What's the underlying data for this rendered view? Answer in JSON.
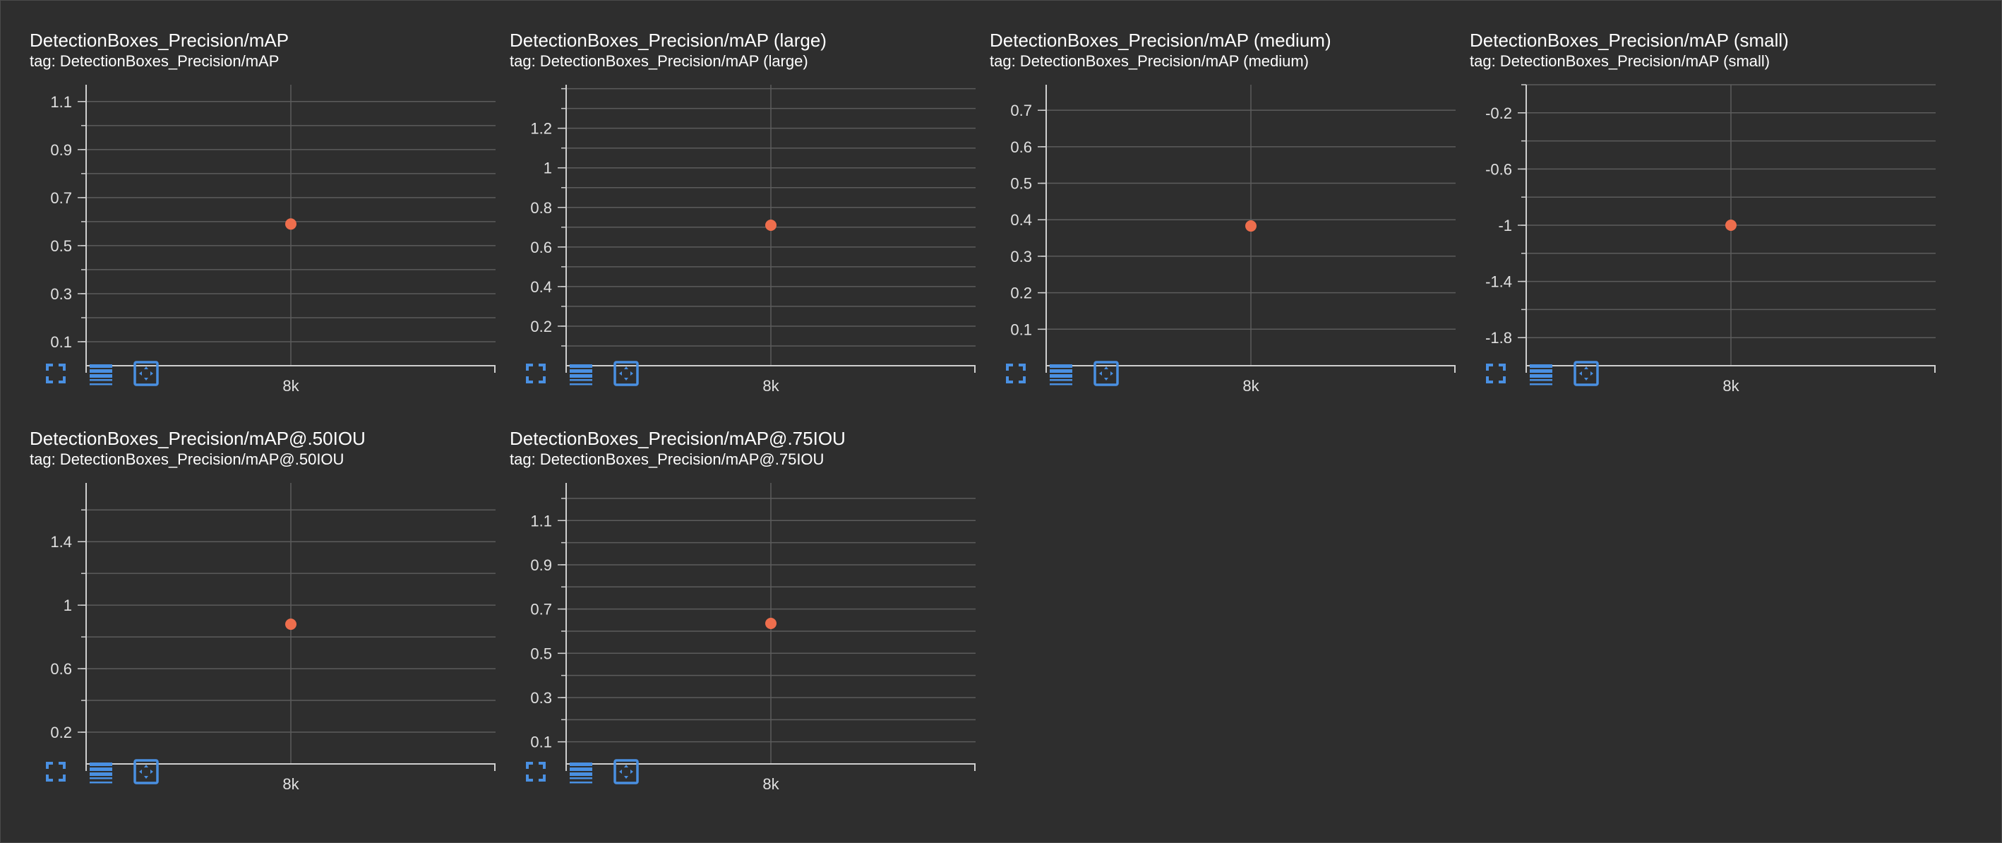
{
  "colors": {
    "background": "#2e2e2e",
    "grid": "#5c5c5c",
    "axis": "#cfcfcf",
    "point": "#ee6e4d",
    "icon": "#4a90e2",
    "text": "#ffffff"
  },
  "toolbar_icons": [
    "fullscreen-icon",
    "data-table-icon",
    "fit-domain-icon"
  ],
  "cards": [
    {
      "title": "DetectionBoxes_Precision/mAP",
      "tag": "tag: DetectionBoxes_Precision/mAP"
    },
    {
      "title": "DetectionBoxes_Precision/mAP (large)",
      "tag": "tag: DetectionBoxes_Precision/mAP (large)"
    },
    {
      "title": "DetectionBoxes_Precision/mAP (medium)",
      "tag": "tag: DetectionBoxes_Precision/mAP (medium)"
    },
    {
      "title": "DetectionBoxes_Precision/mAP (small)",
      "tag": "tag: DetectionBoxes_Precision/mAP (small)"
    },
    {
      "title": "DetectionBoxes_Precision/mAP@.50IOU",
      "tag": "tag: DetectionBoxes_Precision/mAP@.50IOU"
    },
    {
      "title": "DetectionBoxes_Precision/mAP@.75IOU",
      "tag": "tag: DetectionBoxes_Precision/mAP@.75IOU"
    }
  ],
  "chart_data": [
    {
      "type": "scatter",
      "title": "DetectionBoxes_Precision/mAP",
      "x_tick_labels": [
        "8k"
      ],
      "y_ticks": [
        0.1,
        0.3,
        0.5,
        0.7,
        0.9,
        1.1
      ],
      "y_tick_labels": [
        "0.1",
        "0.3",
        "0.5",
        "0.7",
        "0.9",
        "1.1"
      ],
      "y_minor_step": 0.1,
      "ylim": [
        0.0,
        1.17
      ],
      "points": [
        {
          "x": "8k",
          "y": 0.59
        }
      ],
      "grid": true
    },
    {
      "type": "scatter",
      "title": "DetectionBoxes_Precision/mAP (large)",
      "x_tick_labels": [
        "8k"
      ],
      "y_ticks": [
        0.2,
        0.4,
        0.6,
        0.8,
        1.0,
        1.2
      ],
      "y_tick_labels": [
        "0.2",
        "0.4",
        "0.6",
        "0.8",
        "1",
        "1.2"
      ],
      "y_minor_step": 0.1,
      "ylim": [
        0.0,
        1.42
      ],
      "points": [
        {
          "x": "8k",
          "y": 0.71
        }
      ],
      "grid": true
    },
    {
      "type": "scatter",
      "title": "DetectionBoxes_Precision/mAP (medium)",
      "x_tick_labels": [
        "8k"
      ],
      "y_ticks": [
        0.1,
        0.2,
        0.3,
        0.4,
        0.5,
        0.6,
        0.7
      ],
      "y_tick_labels": [
        "0.1",
        "0.2",
        "0.3",
        "0.4",
        "0.5",
        "0.6",
        "0.7"
      ],
      "y_minor_step": 0.1,
      "ylim": [
        0.0,
        0.77
      ],
      "points": [
        {
          "x": "8k",
          "y": 0.383
        }
      ],
      "grid": true
    },
    {
      "type": "scatter",
      "title": "DetectionBoxes_Precision/mAP (small)",
      "x_tick_labels": [
        "8k"
      ],
      "y_ticks": [
        -1.8,
        -1.4,
        -1.0,
        -0.6,
        -0.2
      ],
      "y_tick_labels": [
        "-1.8",
        "-1.4",
        "-1",
        "-0.6",
        "-0.2"
      ],
      "y_minor_step": 0.2,
      "ylim": [
        -2.0,
        0.0
      ],
      "points": [
        {
          "x": "8k",
          "y": -1.0
        }
      ],
      "grid": true
    },
    {
      "type": "scatter",
      "title": "DetectionBoxes_Precision/mAP@.50IOU",
      "x_tick_labels": [
        "8k"
      ],
      "y_ticks": [
        0.2,
        0.6,
        1.0,
        1.4
      ],
      "y_tick_labels": [
        "0.2",
        "0.6",
        "1",
        "1.4"
      ],
      "y_minor_step": 0.2,
      "ylim": [
        0.0,
        1.77
      ],
      "points": [
        {
          "x": "8k",
          "y": 0.88
        }
      ],
      "grid": true
    },
    {
      "type": "scatter",
      "title": "DetectionBoxes_Precision/mAP@.75IOU",
      "x_tick_labels": [
        "8k"
      ],
      "y_ticks": [
        0.1,
        0.3,
        0.5,
        0.7,
        0.9,
        1.1
      ],
      "y_tick_labels": [
        "0.1",
        "0.3",
        "0.5",
        "0.7",
        "0.9",
        "1.1"
      ],
      "y_minor_step": 0.1,
      "ylim": [
        0.0,
        1.27
      ],
      "points": [
        {
          "x": "8k",
          "y": 0.635
        }
      ],
      "grid": true
    }
  ]
}
